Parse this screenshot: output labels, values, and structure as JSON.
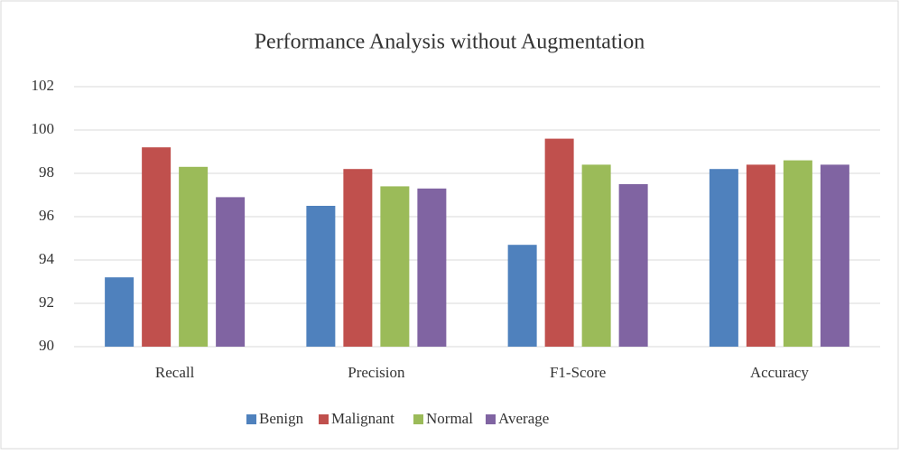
{
  "chart_data": {
    "type": "bar",
    "title": "Performance Analysis without Augmentation",
    "categories": [
      "Recall",
      "Precision",
      "F1-Score",
      "Accuracy"
    ],
    "series": [
      {
        "name": "Benign",
        "color": "#4f81bd",
        "values": [
          93.2,
          96.5,
          94.7,
          98.2
        ]
      },
      {
        "name": "Malignant",
        "color": "#c0504d",
        "values": [
          99.2,
          98.2,
          99.6,
          98.4
        ]
      },
      {
        "name": "Normal",
        "color": "#9bbb59",
        "values": [
          98.3,
          97.4,
          98.4,
          98.6
        ]
      },
      {
        "name": "Average",
        "color": "#8064a2",
        "values": [
          96.9,
          97.3,
          97.5,
          98.4
        ]
      }
    ],
    "ylim": [
      90,
      102
    ],
    "yticks": [
      90,
      92,
      94,
      96,
      98,
      100,
      102
    ],
    "grid": true,
    "legend": "bottom"
  }
}
